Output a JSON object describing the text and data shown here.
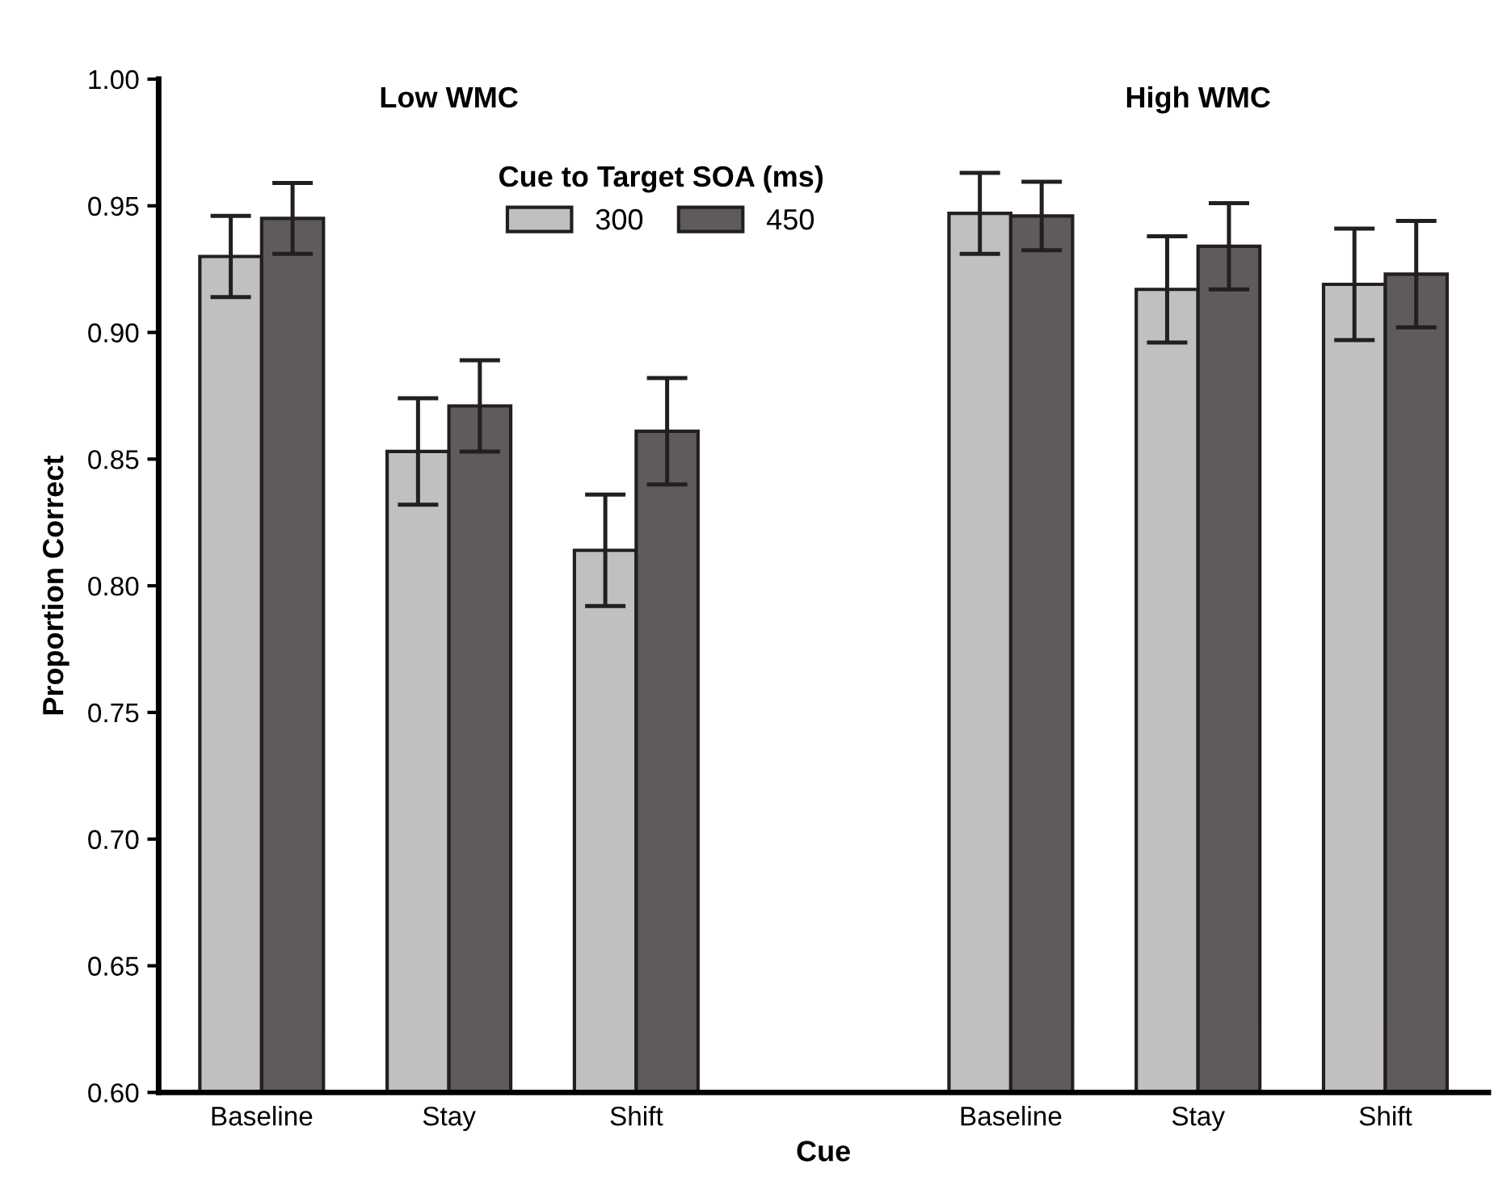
{
  "chart_data": {
    "type": "bar",
    "xlabel": "Cue",
    "ylabel": "Proportion Correct",
    "legend_title": "Cue to Target SOA (ms)",
    "legend": "top",
    "grid": false,
    "categories": [
      "Baseline",
      "Stay",
      "Shift",
      null,
      "Baseline",
      "Stay",
      "Shift"
    ],
    "series": [
      {
        "name": "300",
        "color": "#c0c0c0",
        "values": [
          0.93,
          0.853,
          0.814,
          null,
          0.947,
          0.917,
          0.919
        ],
        "errors": [
          0.016,
          0.021,
          0.022,
          null,
          0.016,
          0.021,
          0.022
        ]
      },
      {
        "name": "450",
        "color": "#5f5b5a",
        "values": [
          0.945,
          0.871,
          0.861,
          null,
          0.946,
          0.934,
          0.923
        ],
        "errors": [
          0.014,
          0.018,
          0.021,
          null,
          0.0135,
          0.017,
          0.021
        ]
      }
    ],
    "ylim": [
      0.6,
      1.0
    ],
    "yticks": [
      {
        "value": 0.6,
        "label": "0.60"
      },
      {
        "value": 0.65,
        "label": "0.65"
      },
      {
        "value": 0.7,
        "label": "0.70"
      },
      {
        "value": 0.75,
        "label": "0.75"
      },
      {
        "value": 0.8,
        "label": "0.80"
      },
      {
        "value": 0.85,
        "label": "0.85"
      },
      {
        "value": 0.9,
        "label": "0.90"
      },
      {
        "value": 0.95,
        "label": "0.95"
      },
      {
        "value": 1.0,
        "label": "1.00"
      }
    ],
    "annotations": [
      "Low WMC",
      "High WMC"
    ]
  }
}
